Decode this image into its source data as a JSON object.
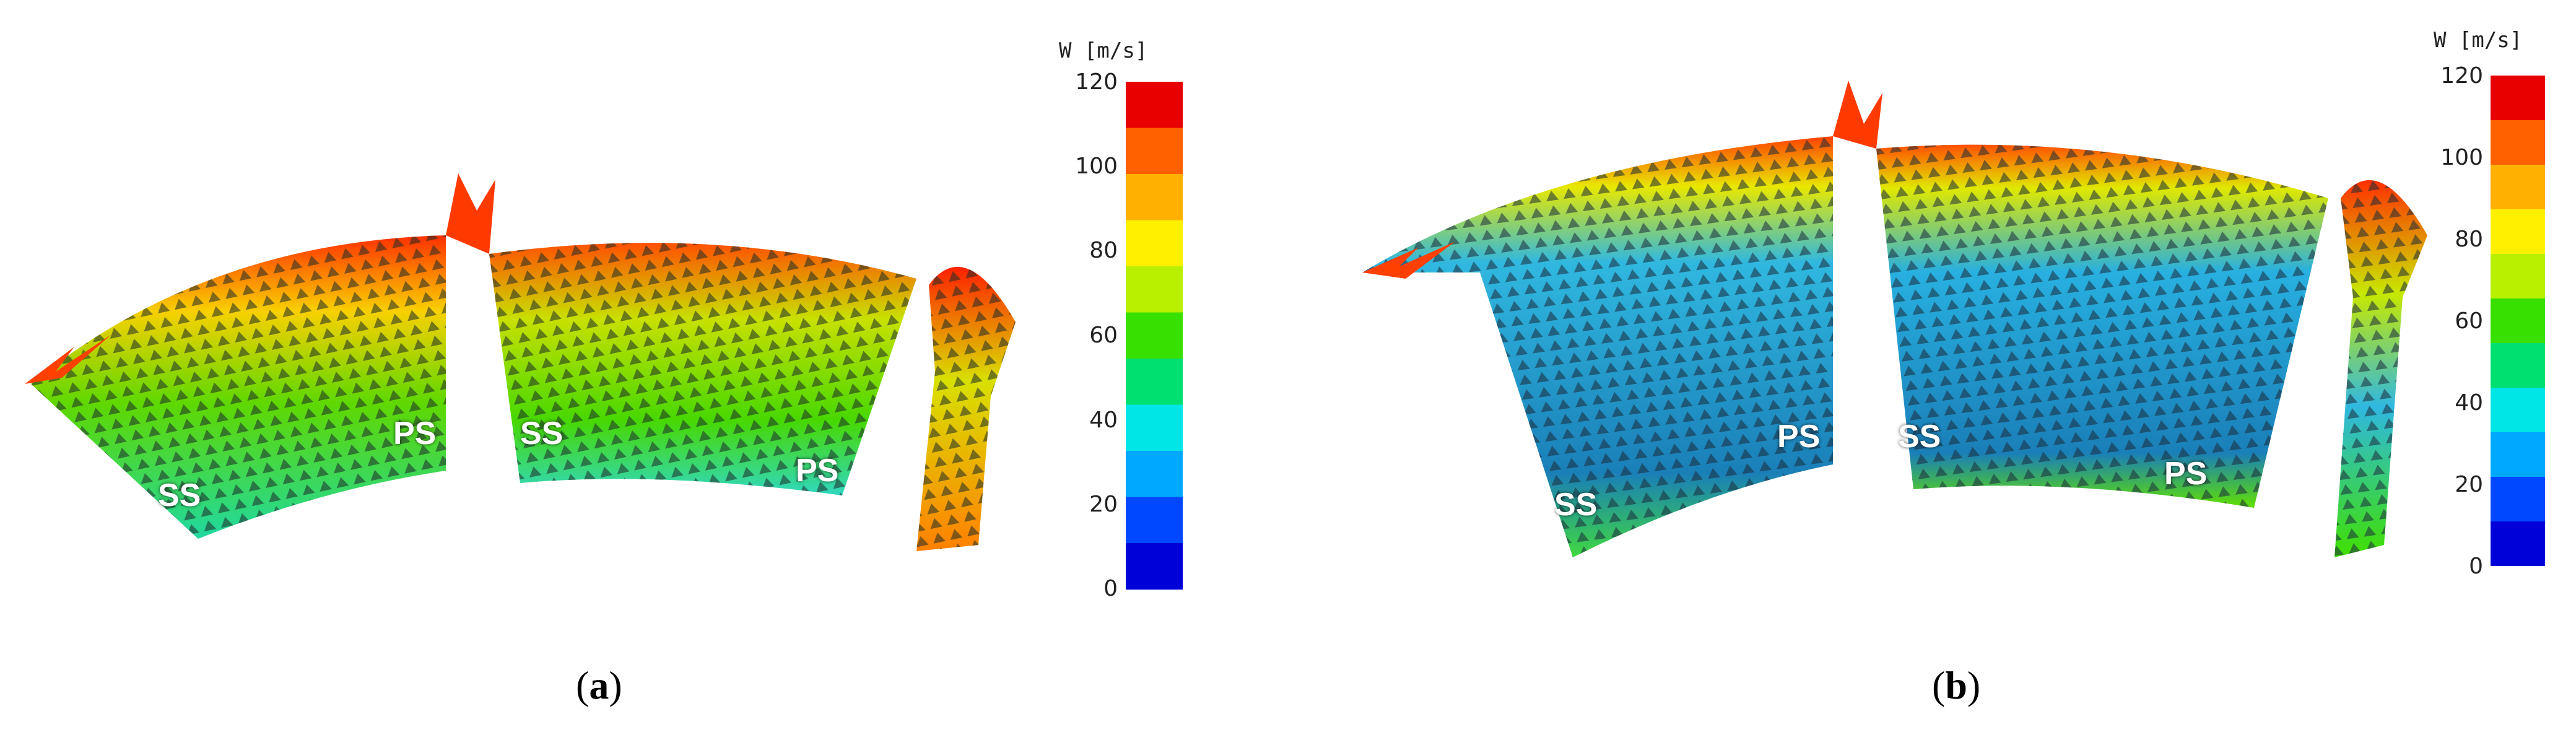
{
  "panels": [
    {
      "id": "a",
      "caption_open": "(",
      "caption_letter": "a",
      "caption_close": ")",
      "blade_labels": [
        "SS",
        "PS",
        "SS",
        "PS"
      ],
      "colorbar": {
        "title": "W [m/s]",
        "ticks": [
          "120",
          "100",
          "80",
          "60",
          "40",
          "20",
          "0"
        ]
      }
    },
    {
      "id": "b",
      "caption_open": "(",
      "caption_letter": "b",
      "caption_close": ")",
      "blade_labels": [
        "SS",
        "PS",
        "SS",
        "PS"
      ],
      "colorbar": {
        "title": "W [m/s]",
        "ticks": [
          "120",
          "100",
          "80",
          "60",
          "40",
          "20",
          "0"
        ]
      }
    }
  ],
  "colormap": [
    "#0000d8",
    "#0048ff",
    "#00a8ff",
    "#00e6e6",
    "#00e070",
    "#38e000",
    "#b8f000",
    "#fff000",
    "#ffb000",
    "#ff6000",
    "#e80000"
  ]
}
